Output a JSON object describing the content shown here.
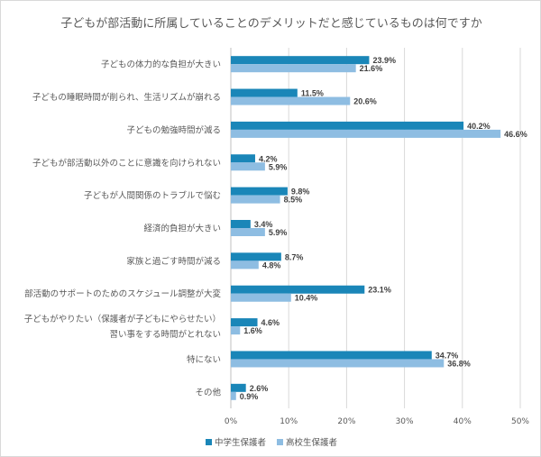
{
  "chart_data": {
    "type": "bar",
    "orientation": "horizontal",
    "title": "子どもが部活動に所属していることのデメリットだと感じているものは何ですか",
    "categories": [
      "子どもの体力的な負担が大きい",
      "子どもの睡眠時間が削られ、生活リズムが崩れる",
      "子どもの勉強時間が減る",
      "子どもが部活動以外のことに意識を向けられない",
      "子どもが人間関係のトラブルで悩む",
      "経済的負担が大きい",
      "家族と過ごす時間が減る",
      "部活動のサポートのためのスケジュール調整が大変",
      "子どもがやりたい（保護者が子どもにやらせたい）\n習い事をする時間がとれない",
      "特にない",
      "その他"
    ],
    "series": [
      {
        "name": "中学生保護者",
        "color": "#1a86b8",
        "values": [
          23.9,
          11.5,
          40.2,
          4.2,
          9.8,
          3.4,
          8.7,
          23.1,
          4.6,
          34.7,
          2.6
        ]
      },
      {
        "name": "高校生保護者",
        "color": "#8ebde2",
        "values": [
          21.6,
          20.6,
          46.6,
          5.9,
          8.5,
          5.9,
          4.8,
          10.4,
          1.6,
          36.8,
          0.9
        ]
      }
    ],
    "xlim": [
      0,
      50
    ],
    "xticks": [
      "0%",
      "10%",
      "20%",
      "30%",
      "40%",
      "50%"
    ],
    "grid": true,
    "legend": "bottom"
  }
}
